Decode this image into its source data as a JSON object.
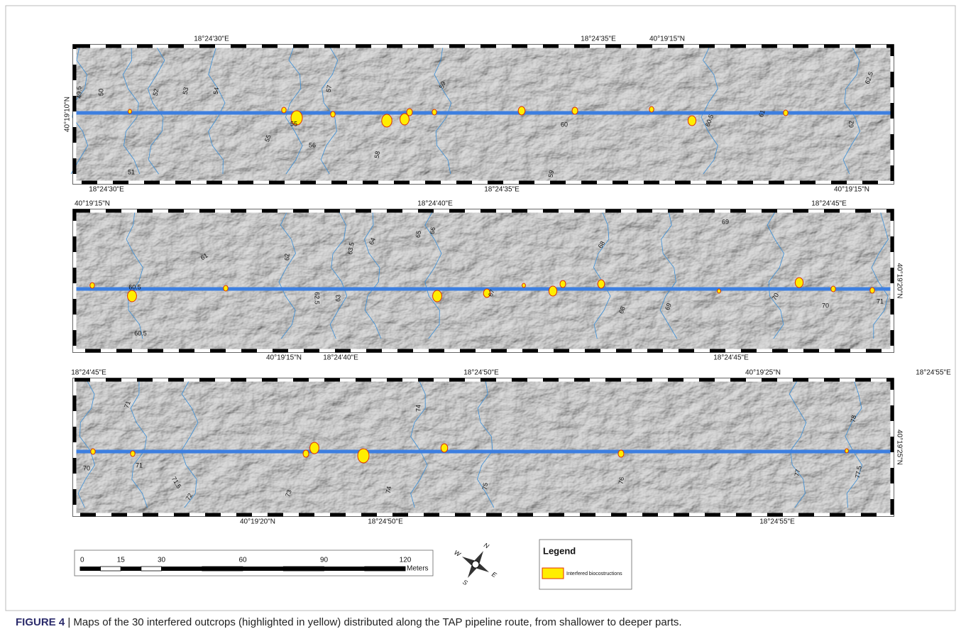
{
  "maps": [
    {
      "top_labels": [
        "18°24'30\"E",
        "18°24'35\"E",
        "40°19'15\"N"
      ],
      "bottom_labels": [
        "18°24'30\"E",
        "18°24'35\"E",
        "40°19'15\"N"
      ],
      "side_label": "40°19'10\"N",
      "contours": [
        "49.5",
        "50",
        "52",
        "53",
        "54",
        "55",
        "55",
        "56",
        "57",
        "58",
        "59",
        "60",
        "60.5",
        "61",
        "62",
        "62.5",
        "51",
        "59"
      ]
    },
    {
      "top_labels": [
        "40°19'15\"N",
        "18°24'40\"E",
        "18°24'45\"E"
      ],
      "bottom_labels": [
        "40°19'15\"N",
        "18°24'40\"E",
        "18°24'45\"E"
      ],
      "side_label": "40°19'20\"N",
      "contours": [
        "60.5",
        "61",
        "62",
        "62.5",
        "63",
        "63.5",
        "64",
        "65",
        "66",
        "67",
        "68",
        "68",
        "69",
        "69",
        "70",
        "70",
        "71",
        "60.5"
      ]
    },
    {
      "top_labels": [
        "18°24'45\"E",
        "18°24'50\"E",
        "40°19'25\"N",
        "18°24'55\"E"
      ],
      "bottom_labels": [
        "40°19'20\"N",
        "18°24'50\"E",
        "18°24'55\"E"
      ],
      "side_label": "40°19'25\"N",
      "contours": [
        "70",
        "71",
        "71",
        "71.5",
        "72",
        "73",
        "74",
        "74",
        "75",
        "76",
        "77",
        "77.5",
        "78"
      ]
    }
  ],
  "scale_bar": {
    "ticks": [
      0,
      15,
      30,
      60,
      90,
      120
    ],
    "unit": "Meters"
  },
  "compass": {
    "n": "N",
    "e": "E",
    "s": "S",
    "w": "W"
  },
  "legend": {
    "title": "Legend",
    "item": "Interfered biocostructions"
  },
  "caption": {
    "label": "FIGURE 4",
    "text": " | Maps of the 30 interfered outcrops (highlighted in yellow) distributed along the TAP pipeline route, from shallower to deeper parts."
  }
}
